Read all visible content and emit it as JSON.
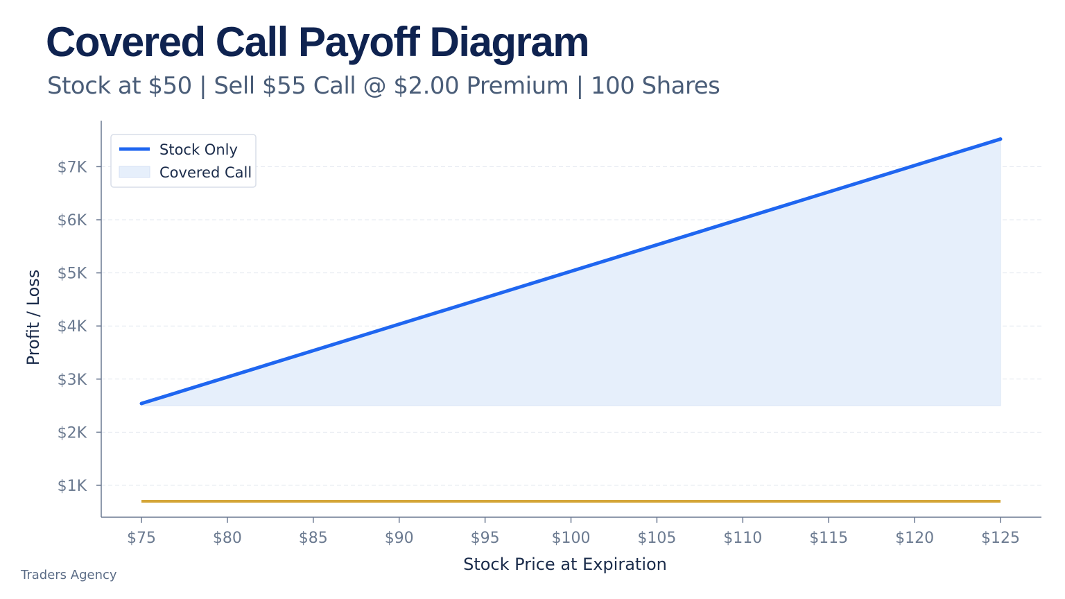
{
  "title": "Covered Call Payoff Diagram",
  "subtitle": "Stock at $50 | Sell $55 Call @ $2.00 Premium | 100 Shares",
  "brand": "Traders Agency",
  "colors": {
    "stock_line": "#1f66f0",
    "covered_fill": "#e6effb",
    "flat_line": "#d4a537",
    "grid": "#e3e8ef",
    "axis": "#6a7891"
  },
  "chart_data": {
    "type": "line",
    "xlabel": "Stock Price at Expiration",
    "ylabel": "Profit / Loss",
    "x_ticks": [
      75,
      80,
      85,
      90,
      95,
      100,
      105,
      110,
      115,
      120,
      125
    ],
    "x_tick_labels": [
      "$75",
      "$80",
      "$85",
      "$90",
      "$95",
      "$100",
      "$105",
      "$110",
      "$115",
      "$120",
      "$125"
    ],
    "y_ticks": [
      1000,
      2000,
      3000,
      4000,
      5000,
      6000,
      7000
    ],
    "y_tick_labels": [
      "$1K",
      "$2K",
      "$3K",
      "$4K",
      "$5K",
      "$6K",
      "$7K"
    ],
    "grid": true,
    "legend_position": "top-left",
    "series": [
      {
        "name": "Stock Only",
        "kind": "line",
        "color": "#1f66f0",
        "x": [
          75,
          125
        ],
        "y": [
          2540,
          7520
        ]
      },
      {
        "name": "Covered Call",
        "kind": "area",
        "color": "#e6effb",
        "x": [
          75,
          125
        ],
        "y_top": [
          2540,
          7520
        ],
        "y_bottom": [
          2500,
          2500
        ]
      },
      {
        "kind": "line",
        "color": "#d4a537",
        "x": [
          75,
          125
        ],
        "y": [
          700,
          700
        ]
      }
    ]
  }
}
